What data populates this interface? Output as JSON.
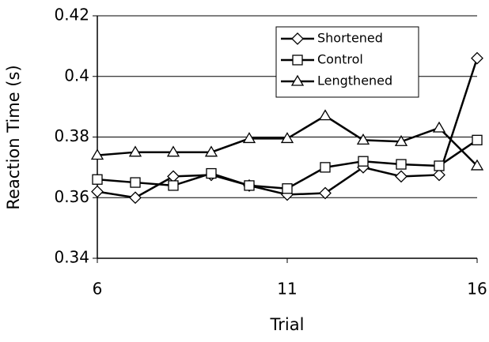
{
  "chart_data": {
    "type": "line",
    "x_label": "Trial",
    "y_label": "Reaction Time (s)",
    "x": [
      6,
      7,
      8,
      9,
      10,
      11,
      12,
      13,
      14,
      15,
      16
    ],
    "xlim": [
      6,
      16
    ],
    "xticks": [
      6,
      11,
      16
    ],
    "ylim": [
      0.34,
      0.42
    ],
    "yticks": [
      0.34,
      0.36,
      0.38,
      0.4,
      0.42
    ],
    "grid": true,
    "legend": "upper right",
    "series": [
      {
        "name": "Shortened",
        "color": "#000000",
        "marker": "diamond",
        "values": [
          0.362,
          0.36,
          0.367,
          0.3675,
          0.364,
          0.361,
          0.3615,
          0.37,
          0.367,
          0.3675,
          0.406
        ]
      },
      {
        "name": "Control",
        "color": "#000000",
        "marker": "square",
        "values": [
          0.366,
          0.365,
          0.364,
          0.368,
          0.364,
          0.363,
          0.37,
          0.372,
          0.371,
          0.3705,
          0.379
        ]
      },
      {
        "name": "Lengthened",
        "color": "#000000",
        "marker": "triangle",
        "values": [
          0.374,
          0.375,
          0.375,
          0.375,
          0.3795,
          0.3795,
          0.387,
          0.379,
          0.3785,
          0.383,
          0.3705
        ]
      }
    ]
  }
}
